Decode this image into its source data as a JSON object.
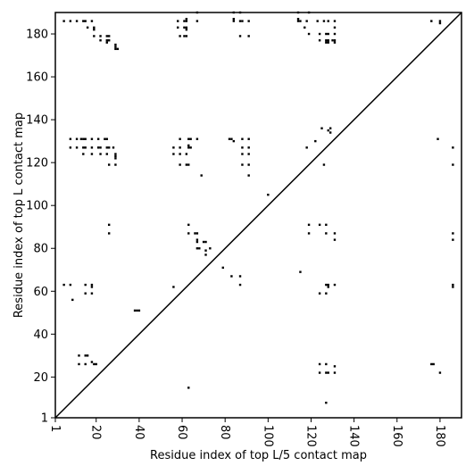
{
  "chart_data": {
    "type": "scatter",
    "xlabel": "Residue index of top L/5 contact map",
    "ylabel": "Residue index of top L contact map",
    "xlim": [
      1,
      190
    ],
    "ylim": [
      1,
      190
    ],
    "xticks": [
      1,
      20,
      40,
      60,
      80,
      100,
      120,
      140,
      160,
      180
    ],
    "yticks": [
      1,
      20,
      40,
      60,
      80,
      100,
      120,
      140,
      160,
      180
    ],
    "xtick_labels": [
      "1",
      "20",
      "40",
      "60",
      "80",
      "100",
      "120",
      "140",
      "160",
      "180"
    ],
    "ytick_labels": [
      "1",
      "20",
      "40",
      "60",
      "80",
      "100",
      "120",
      "140",
      "160",
      "180"
    ],
    "diagonal": true,
    "grid": false,
    "marker_color": "#000000",
    "series": [
      {
        "values": [
          [
            5,
            186
          ],
          [
            8,
            186
          ],
          [
            11,
            186
          ],
          [
            14,
            186
          ],
          [
            15,
            186
          ],
          [
            18,
            186
          ],
          [
            16,
            183
          ],
          [
            19,
            183
          ],
          [
            19,
            182
          ],
          [
            19,
            179
          ],
          [
            22,
            179
          ],
          [
            25,
            179
          ],
          [
            26,
            179
          ],
          [
            22,
            177
          ],
          [
            25,
            177
          ],
          [
            26,
            177
          ],
          [
            25,
            176
          ],
          [
            29,
            175
          ],
          [
            29,
            174
          ],
          [
            29,
            173
          ],
          [
            30,
            173
          ],
          [
            58,
            186
          ],
          [
            61,
            186
          ],
          [
            62,
            186
          ],
          [
            62,
            187
          ],
          [
            67,
            186
          ],
          [
            67,
            190
          ],
          [
            58,
            183
          ],
          [
            61,
            183
          ],
          [
            62,
            183
          ],
          [
            62,
            182
          ],
          [
            59,
            179
          ],
          [
            61,
            179
          ],
          [
            62,
            179
          ],
          [
            84,
            190
          ],
          [
            87,
            190
          ],
          [
            84,
            187
          ],
          [
            84,
            186
          ],
          [
            87,
            186
          ],
          [
            88,
            186
          ],
          [
            91,
            186
          ],
          [
            87,
            179
          ],
          [
            91,
            179
          ],
          [
            114,
            190
          ],
          [
            119,
            190
          ],
          [
            114,
            187
          ],
          [
            114,
            186
          ],
          [
            115,
            186
          ],
          [
            118,
            186
          ],
          [
            123,
            186
          ],
          [
            126,
            186
          ],
          [
            128,
            186
          ],
          [
            131,
            186
          ],
          [
            117,
            183
          ],
          [
            131,
            183
          ],
          [
            119,
            180
          ],
          [
            124,
            180
          ],
          [
            127,
            180
          ],
          [
            128,
            180
          ],
          [
            131,
            180
          ],
          [
            124,
            177
          ],
          [
            127,
            177
          ],
          [
            128,
            177
          ],
          [
            130,
            177
          ],
          [
            131,
            177
          ],
          [
            127,
            176
          ],
          [
            128,
            176
          ],
          [
            131,
            176
          ],
          [
            176,
            186
          ],
          [
            180,
            186
          ],
          [
            180,
            185
          ],
          [
            8,
            131
          ],
          [
            8,
            127
          ],
          [
            11,
            131
          ],
          [
            13,
            131
          ],
          [
            14,
            131
          ],
          [
            15,
            131
          ],
          [
            18,
            131
          ],
          [
            21,
            131
          ],
          [
            24,
            131
          ],
          [
            25,
            131
          ],
          [
            11,
            127
          ],
          [
            14,
            127
          ],
          [
            15,
            127
          ],
          [
            18,
            127
          ],
          [
            21,
            127
          ],
          [
            22,
            127
          ],
          [
            25,
            127
          ],
          [
            26,
            127
          ],
          [
            28,
            127
          ],
          [
            14,
            124
          ],
          [
            18,
            124
          ],
          [
            22,
            124
          ],
          [
            25,
            124
          ],
          [
            29,
            124
          ],
          [
            29,
            123
          ],
          [
            29,
            122
          ],
          [
            26,
            119
          ],
          [
            29,
            119
          ],
          [
            56,
            127
          ],
          [
            59,
            127
          ],
          [
            56,
            124
          ],
          [
            59,
            124
          ],
          [
            62,
            124
          ],
          [
            59,
            131
          ],
          [
            63,
            131
          ],
          [
            64,
            131
          ],
          [
            67,
            131
          ],
          [
            59,
            119
          ],
          [
            62,
            119
          ],
          [
            63,
            119
          ],
          [
            63,
            127
          ],
          [
            64,
            127
          ],
          [
            63,
            128
          ],
          [
            69,
            114
          ],
          [
            82,
            131
          ],
          [
            83,
            131
          ],
          [
            84,
            130
          ],
          [
            88,
            131
          ],
          [
            91,
            131
          ],
          [
            88,
            127
          ],
          [
            91,
            127
          ],
          [
            88,
            124
          ],
          [
            91,
            124
          ],
          [
            88,
            119
          ],
          [
            91,
            119
          ],
          [
            91,
            114
          ],
          [
            125,
            136
          ],
          [
            128,
            135
          ],
          [
            129,
            134
          ],
          [
            129,
            136
          ],
          [
            122,
            130
          ],
          [
            118,
            127
          ],
          [
            126,
            119
          ],
          [
            179,
            131
          ],
          [
            186,
            127
          ],
          [
            186,
            119
          ],
          [
            100,
            105
          ],
          [
            26,
            91
          ],
          [
            26,
            87
          ],
          [
            63,
            91
          ],
          [
            63,
            87
          ],
          [
            66,
            87
          ],
          [
            67,
            87
          ],
          [
            67,
            84
          ],
          [
            67,
            83
          ],
          [
            70,
            83
          ],
          [
            71,
            83
          ],
          [
            67,
            80
          ],
          [
            68,
            80
          ],
          [
            73,
            80
          ],
          [
            71,
            79
          ],
          [
            71,
            77
          ],
          [
            119,
            91
          ],
          [
            124,
            91
          ],
          [
            127,
            91
          ],
          [
            119,
            87
          ],
          [
            127,
            87
          ],
          [
            131,
            87
          ],
          [
            131,
            84
          ],
          [
            186,
            87
          ],
          [
            186,
            84
          ],
          [
            79,
            71
          ],
          [
            83,
            67
          ],
          [
            87,
            67
          ],
          [
            87,
            63
          ],
          [
            115,
            69
          ],
          [
            5,
            63
          ],
          [
            8,
            63
          ],
          [
            15,
            63
          ],
          [
            18,
            63
          ],
          [
            18,
            62
          ],
          [
            15,
            59
          ],
          [
            18,
            59
          ],
          [
            56,
            62
          ],
          [
            9,
            56
          ],
          [
            38,
            51
          ],
          [
            39,
            51
          ],
          [
            40,
            51
          ],
          [
            124,
            59
          ],
          [
            127,
            59
          ],
          [
            127,
            63
          ],
          [
            128,
            63
          ],
          [
            131,
            63
          ],
          [
            128,
            62
          ],
          [
            186,
            63
          ],
          [
            186,
            62
          ],
          [
            12,
            30
          ],
          [
            15,
            30
          ],
          [
            16,
            30
          ],
          [
            15,
            26
          ],
          [
            18,
            27
          ],
          [
            19,
            26
          ],
          [
            20,
            26
          ],
          [
            12,
            26
          ],
          [
            124,
            26
          ],
          [
            127,
            26
          ],
          [
            131,
            25
          ],
          [
            124,
            22
          ],
          [
            127,
            22
          ],
          [
            128,
            22
          ],
          [
            131,
            22
          ],
          [
            176,
            26
          ],
          [
            177,
            26
          ],
          [
            180,
            22
          ],
          [
            127,
            8
          ],
          [
            63,
            15
          ]
        ]
      }
    ]
  }
}
